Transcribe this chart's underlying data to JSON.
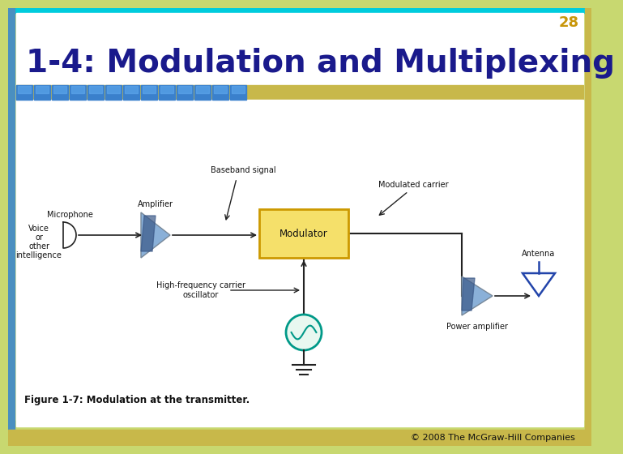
{
  "page_num": "28",
  "title": "1-4: Modulation and Multiplexing",
  "title_color": "#1a1a8c",
  "page_num_color": "#c8960a",
  "figure_caption": "Figure 1-7: Modulation at the transmitter.",
  "copyright": "© 2008 The McGraw-Hill Companies",
  "bg_outer": "#c8d870",
  "bg_inner": "#ffffff",
  "top_bar_color": "#00ccdd",
  "bottom_bar_color": "#c8b84a",
  "left_bar_color": "#4a8fc0",
  "tile_color": "#3a80cc",
  "tile_color2": "#60aaee",
  "modulator_fill": "#f5e06a",
  "modulator_stroke": "#cc9900",
  "amplifier_color": "#8ab0d8",
  "amplifier_dark": "#3a5888",
  "oscillator_stroke": "#009988",
  "oscillator_fill": "#e8f8f0",
  "line_color": "#222222",
  "antenna_color": "#2244aa",
  "label_color": "#111111"
}
